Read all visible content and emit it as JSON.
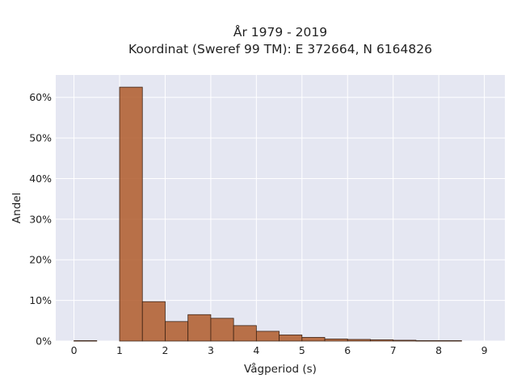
{
  "chart_data": {
    "type": "bar",
    "title_lines": [
      "År 1979 - 2019",
      "Koordinat (Sweref 99 TM): E 372664, N 6164826"
    ],
    "xlabel": "Vågperiod (s)",
    "ylabel": "Andel",
    "x_ticks": [
      "0",
      "1",
      "2",
      "3",
      "4",
      "5",
      "6",
      "7",
      "8",
      "9"
    ],
    "y_ticks": [
      "0%",
      "10%",
      "20%",
      "30%",
      "40%",
      "50%",
      "60%"
    ],
    "xlim": [
      -0.4,
      9.45
    ],
    "ylim": [
      0,
      0.655
    ],
    "bin_width": 0.5,
    "bins": [
      {
        "x": 0.0,
        "value": 0.001
      },
      {
        "x": 0.5,
        "value": 0.0
      },
      {
        "x": 1.0,
        "value": 0.625
      },
      {
        "x": 1.5,
        "value": 0.097
      },
      {
        "x": 2.0,
        "value": 0.048
      },
      {
        "x": 2.5,
        "value": 0.065
      },
      {
        "x": 3.0,
        "value": 0.056
      },
      {
        "x": 3.5,
        "value": 0.038
      },
      {
        "x": 4.0,
        "value": 0.024
      },
      {
        "x": 4.5,
        "value": 0.015
      },
      {
        "x": 5.0,
        "value": 0.009
      },
      {
        "x": 5.5,
        "value": 0.005
      },
      {
        "x": 6.0,
        "value": 0.004
      },
      {
        "x": 6.5,
        "value": 0.003
      },
      {
        "x": 7.0,
        "value": 0.002
      },
      {
        "x": 7.5,
        "value": 0.001
      },
      {
        "x": 8.0,
        "value": 0.001
      }
    ],
    "grid": true,
    "legend": false,
    "colors": {
      "bar_fill": "#b05a2a",
      "bar_stroke": "#3d2416",
      "plot_bg": "#e5e7f2",
      "grid": "#ffffff"
    }
  }
}
